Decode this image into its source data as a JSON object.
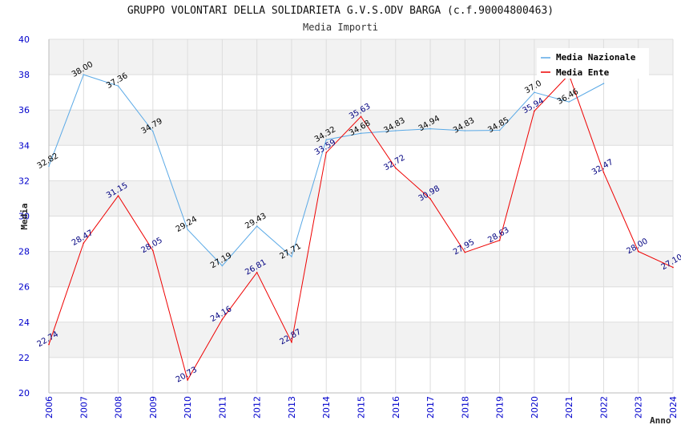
{
  "chart_data": {
    "type": "line",
    "title": "GRUPPO VOLONTARI DELLA SOLIDARIETA G.V.S.ODV BARGA (c.f.90004800463)",
    "subtitle": "Media Importi",
    "xlabel": "Anno",
    "ylabel": "Media",
    "x": [
      "2006",
      "2007",
      "2008",
      "2009",
      "2010",
      "2011",
      "2012",
      "2013",
      "2014",
      "2015",
      "2016",
      "2017",
      "2018",
      "2019",
      "2020",
      "2021",
      "2022",
      "2023",
      "2024"
    ],
    "ylim": [
      20,
      40
    ],
    "yticks": [
      "20",
      "22",
      "24",
      "26",
      "28",
      "30",
      "32",
      "34",
      "36",
      "38",
      "40"
    ],
    "grid": true,
    "legend_position": "top-right",
    "series": [
      {
        "name": "Media Nazionale",
        "color": "#5aa9e6",
        "label_color": "#000000",
        "values": [
          32.82,
          38.0,
          37.36,
          34.79,
          29.24,
          27.19,
          29.43,
          27.71,
          34.32,
          34.68,
          34.83,
          34.94,
          34.83,
          34.85,
          37.0,
          36.46,
          37.5,
          null,
          null
        ],
        "labels": [
          "32.82",
          "38.00",
          "37.36",
          "34.79",
          "29.24",
          "27.19",
          "29.43",
          "27.71",
          "34.32",
          "34.68",
          "34.83",
          "34.94",
          "34.83",
          "34.85",
          "37.0",
          "36.46",
          "",
          "",
          ""
        ]
      },
      {
        "name": "Media Ente",
        "color": "#ee0000",
        "label_color": "#000080",
        "values": [
          22.74,
          28.47,
          31.15,
          28.05,
          20.73,
          24.16,
          26.81,
          22.87,
          33.59,
          35.63,
          32.72,
          30.98,
          27.95,
          28.63,
          35.94,
          38.0,
          32.47,
          28.0,
          27.1
        ],
        "labels": [
          "22.74",
          "28.47",
          "31.15",
          "28.05",
          "20.73",
          "24.16",
          "26.81",
          "22.87",
          "33.59",
          "35.63",
          "32.72",
          "30.98",
          "27.95",
          "28.63",
          "35.94",
          "",
          "32.47",
          "28.00",
          "27.10"
        ]
      }
    ]
  }
}
